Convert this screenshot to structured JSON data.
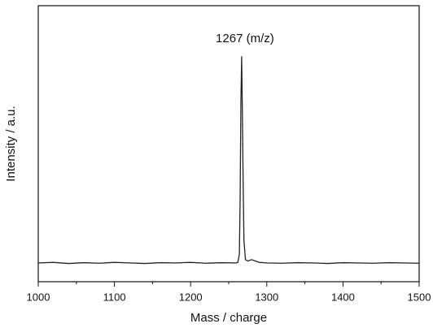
{
  "chart_data": {
    "type": "line",
    "x_label": "Mass / charge",
    "y_label": "Intensity / a.u.",
    "annotation": "1267  (m/z)",
    "annotation_x": 1267,
    "x": [
      1000,
      1020,
      1040,
      1060,
      1080,
      1100,
      1120,
      1140,
      1160,
      1180,
      1200,
      1220,
      1240,
      1260,
      1262,
      1264,
      1265,
      1266,
      1267,
      1268,
      1269,
      1270,
      1272,
      1275,
      1280,
      1285,
      1290,
      1300,
      1320,
      1340,
      1360,
      1380,
      1400,
      1420,
      1440,
      1460,
      1480,
      1500
    ],
    "series": [
      {
        "color": "#222222",
        "values": [
          0.068,
          0.07,
          0.066,
          0.069,
          0.067,
          0.07,
          0.068,
          0.066,
          0.069,
          0.068,
          0.07,
          0.067,
          0.069,
          0.068,
          0.07,
          0.1,
          0.3,
          0.65,
          0.815,
          0.6,
          0.35,
          0.15,
          0.08,
          0.075,
          0.08,
          0.075,
          0.07,
          0.068,
          0.067,
          0.069,
          0.068,
          0.066,
          0.069,
          0.068,
          0.067,
          0.069,
          0.068,
          0.067
        ]
      }
    ],
    "xlim": [
      1000,
      1500
    ],
    "ylim": [
      0,
      1
    ],
    "xticks": [
      1000,
      1100,
      1200,
      1300,
      1400,
      1500
    ],
    "xminorticks": [
      1050,
      1150,
      1250,
      1350,
      1450
    ]
  }
}
